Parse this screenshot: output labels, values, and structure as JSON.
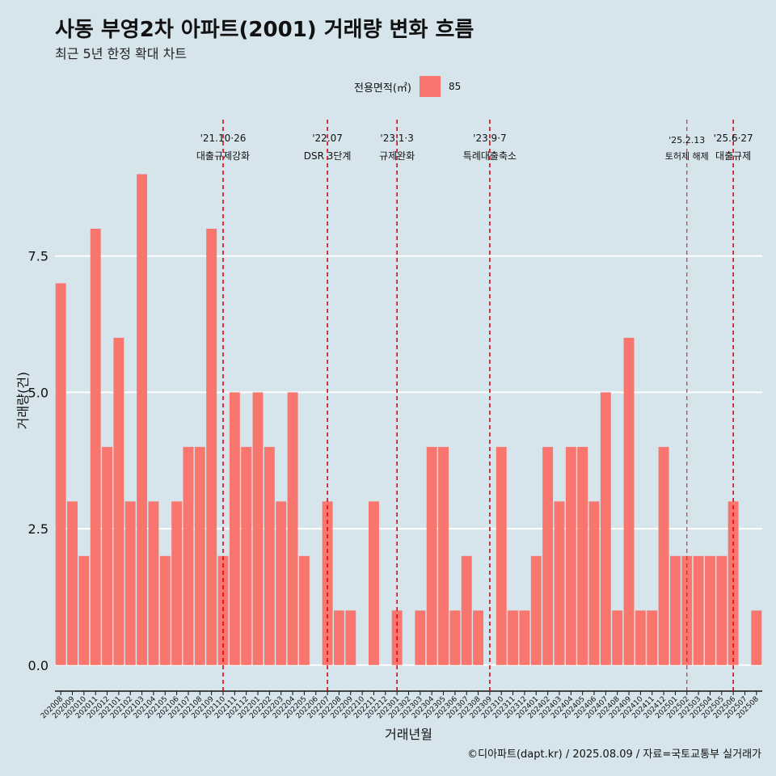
{
  "title": "사동 부영2차 아파트(2001) 거래량 변화 흐름",
  "subtitle": "최근 5년 한정 확대 차트",
  "legend": {
    "title": "전용면적(㎡)",
    "entry": "85"
  },
  "caption": "©디아파트(dapt.kr) / 2025.08.09 / 자료=국토교통부 실거래가",
  "chart_data": {
    "type": "bar",
    "xlabel": "거래년월",
    "ylabel": "거래량(건)",
    "ylim": [
      -0.3,
      10.0
    ],
    "yticks": [
      0.0,
      2.5,
      5.0,
      7.5
    ],
    "ytick_labels": [
      "0.0",
      "2.5",
      "5.0",
      "7.5"
    ],
    "grid": true,
    "legend_position": "top",
    "bar_color": "#f8766d",
    "categories": [
      "202008",
      "202009",
      "202010",
      "202011",
      "202012",
      "202101",
      "202102",
      "202103",
      "202104",
      "202105",
      "202106",
      "202107",
      "202108",
      "202109",
      "202110",
      "202111",
      "202112",
      "202201",
      "202202",
      "202203",
      "202204",
      "202205",
      "202206",
      "202207",
      "202208",
      "202209",
      "202210",
      "202211",
      "202212",
      "202301",
      "202302",
      "202303",
      "202304",
      "202305",
      "202306",
      "202307",
      "202308",
      "202309",
      "202310",
      "202311",
      "202312",
      "202401",
      "202402",
      "202403",
      "202404",
      "202405",
      "202406",
      "202407",
      "202408",
      "202409",
      "202410",
      "202411",
      "202412",
      "202501",
      "202502",
      "202503",
      "202504",
      "202505",
      "202506",
      "202507",
      "202508"
    ],
    "series": [
      {
        "values": [
          7,
          3,
          2,
          8,
          4,
          6,
          3,
          9,
          3,
          2,
          3,
          4,
          4,
          8,
          2,
          5,
          4,
          5,
          4,
          3,
          5,
          2,
          0,
          3,
          1,
          1,
          0,
          3,
          0,
          1,
          0,
          1,
          4,
          4,
          1,
          2,
          1,
          0,
          4,
          1,
          1,
          2,
          4,
          3,
          4,
          4,
          3,
          5,
          1,
          6,
          1,
          1,
          4,
          2,
          2,
          2,
          2,
          2,
          3,
          0,
          1
        ]
      }
    ],
    "annotations": [
      {
        "category": "202110",
        "date": "'21.10·26",
        "label": "대출규제강화"
      },
      {
        "category": "202207",
        "date": "'22.07",
        "label": "DSR 3단계"
      },
      {
        "category": "202301",
        "date": "'23.1·3",
        "label": "규제완화"
      },
      {
        "category": "202309",
        "date": "'23.9·7",
        "label": "특례대출축소"
      },
      {
        "category": "202502",
        "date": "'25.2.13",
        "label": "토허제 해제",
        "small": true
      },
      {
        "category": "202506",
        "date": "'25.6·27",
        "label": "대출규제"
      }
    ],
    "annotation_color": "#e8000b"
  }
}
